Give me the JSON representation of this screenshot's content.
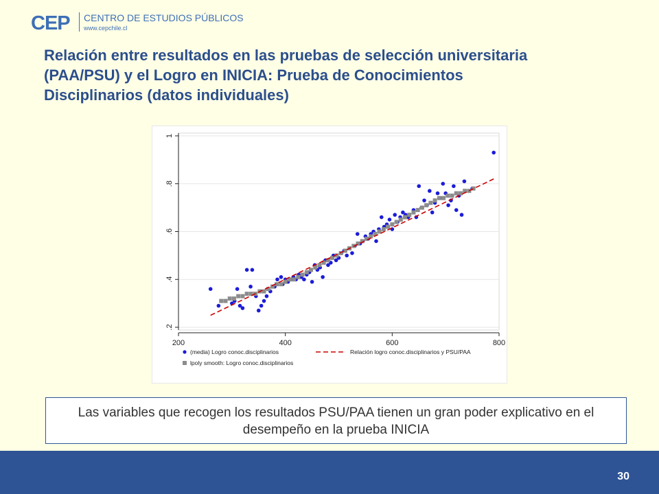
{
  "header": {
    "logo_mark": "CEP",
    "logo_name": "CENTRO DE ESTUDIOS PÚBLICOS",
    "logo_url": "www.cepchile.cl"
  },
  "title": "Relación entre resultados en las pruebas de selección universitaria (PAA/PSU) y el Logro en INICIA: Prueba de Conocimientos Disciplinarios (datos individuales)",
  "note": "Las variables que recogen los resultados PSU/PAA tienen un gran poder explicativo en el desempeño en la prueba INICIA",
  "footer": {
    "page_number": "30"
  },
  "colors": {
    "scatter": "#1c1cd8",
    "smooth": "#8c8c8c",
    "fit": "#cc0000",
    "title": "#2b4e8c",
    "footer": "#2f5496"
  },
  "chart_data": {
    "type": "scatter",
    "xlim": [
      200,
      800
    ],
    "ylim": [
      0.2,
      1.0
    ],
    "xticks": [
      200,
      400,
      600,
      800
    ],
    "xtick_labels": [
      "200",
      "400",
      "600",
      "800"
    ],
    "yticks": [
      0.2,
      0.4,
      0.6,
      0.8,
      1.0
    ],
    "ytick_labels": [
      ".2",
      ".4",
      ".6",
      ".8",
      "1"
    ],
    "grid": true,
    "legend_position": "bottom",
    "series": [
      {
        "name": "(media) Logro conoc.disciplinarios",
        "marker": "circle",
        "points": [
          [
            260,
            0.36
          ],
          [
            275,
            0.29
          ],
          [
            300,
            0.3
          ],
          [
            305,
            0.31
          ],
          [
            310,
            0.36
          ],
          [
            315,
            0.29
          ],
          [
            320,
            0.28
          ],
          [
            328,
            0.44
          ],
          [
            335,
            0.37
          ],
          [
            338,
            0.44
          ],
          [
            345,
            0.33
          ],
          [
            350,
            0.27
          ],
          [
            355,
            0.29
          ],
          [
            360,
            0.31
          ],
          [
            365,
            0.33
          ],
          [
            372,
            0.35
          ],
          [
            380,
            0.37
          ],
          [
            385,
            0.4
          ],
          [
            392,
            0.41
          ],
          [
            395,
            0.38
          ],
          [
            400,
            0.4
          ],
          [
            405,
            0.39
          ],
          [
            410,
            0.4
          ],
          [
            415,
            0.41
          ],
          [
            420,
            0.4
          ],
          [
            425,
            0.42
          ],
          [
            430,
            0.41
          ],
          [
            435,
            0.4
          ],
          [
            440,
            0.42
          ],
          [
            445,
            0.43
          ],
          [
            450,
            0.39
          ],
          [
            455,
            0.46
          ],
          [
            460,
            0.44
          ],
          [
            465,
            0.45
          ],
          [
            470,
            0.41
          ],
          [
            475,
            0.48
          ],
          [
            480,
            0.46
          ],
          [
            485,
            0.47
          ],
          [
            490,
            0.5
          ],
          [
            495,
            0.48
          ],
          [
            500,
            0.49
          ],
          [
            505,
            0.51
          ],
          [
            510,
            0.52
          ],
          [
            515,
            0.5
          ],
          [
            520,
            0.53
          ],
          [
            525,
            0.51
          ],
          [
            530,
            0.54
          ],
          [
            535,
            0.59
          ],
          [
            540,
            0.55
          ],
          [
            545,
            0.56
          ],
          [
            550,
            0.58
          ],
          [
            555,
            0.57
          ],
          [
            560,
            0.59
          ],
          [
            565,
            0.6
          ],
          [
            570,
            0.56
          ],
          [
            575,
            0.61
          ],
          [
            580,
            0.66
          ],
          [
            585,
            0.62
          ],
          [
            590,
            0.63
          ],
          [
            595,
            0.65
          ],
          [
            600,
            0.61
          ],
          [
            605,
            0.67
          ],
          [
            610,
            0.64
          ],
          [
            615,
            0.66
          ],
          [
            620,
            0.68
          ],
          [
            625,
            0.67
          ],
          [
            630,
            0.66
          ],
          [
            640,
            0.69
          ],
          [
            645,
            0.66
          ],
          [
            650,
            0.79
          ],
          [
            655,
            0.7
          ],
          [
            660,
            0.73
          ],
          [
            665,
            0.71
          ],
          [
            670,
            0.77
          ],
          [
            675,
            0.68
          ],
          [
            680,
            0.72
          ],
          [
            685,
            0.76
          ],
          [
            690,
            0.74
          ],
          [
            695,
            0.8
          ],
          [
            700,
            0.76
          ],
          [
            705,
            0.71
          ],
          [
            710,
            0.73
          ],
          [
            715,
            0.79
          ],
          [
            720,
            0.69
          ],
          [
            725,
            0.75
          ],
          [
            730,
            0.67
          ],
          [
            735,
            0.81
          ],
          [
            750,
            0.78
          ],
          [
            790,
            0.93
          ]
        ]
      },
      {
        "name": "lpoly smooth: Logro conoc.disciplinarios",
        "marker": "square",
        "points": [
          [
            280,
            0.31
          ],
          [
            288,
            0.31
          ],
          [
            296,
            0.32
          ],
          [
            304,
            0.32
          ],
          [
            312,
            0.33
          ],
          [
            320,
            0.33
          ],
          [
            328,
            0.34
          ],
          [
            336,
            0.34
          ],
          [
            344,
            0.34
          ],
          [
            352,
            0.35
          ],
          [
            360,
            0.35
          ],
          [
            368,
            0.36
          ],
          [
            376,
            0.37
          ],
          [
            384,
            0.38
          ],
          [
            392,
            0.38
          ],
          [
            400,
            0.39
          ],
          [
            408,
            0.4
          ],
          [
            416,
            0.4
          ],
          [
            424,
            0.41
          ],
          [
            432,
            0.42
          ],
          [
            440,
            0.43
          ],
          [
            448,
            0.44
          ],
          [
            456,
            0.45
          ],
          [
            464,
            0.46
          ],
          [
            472,
            0.47
          ],
          [
            480,
            0.48
          ],
          [
            488,
            0.49
          ],
          [
            496,
            0.5
          ],
          [
            504,
            0.51
          ],
          [
            512,
            0.52
          ],
          [
            520,
            0.53
          ],
          [
            528,
            0.54
          ],
          [
            536,
            0.55
          ],
          [
            544,
            0.56
          ],
          [
            552,
            0.57
          ],
          [
            560,
            0.58
          ],
          [
            568,
            0.59
          ],
          [
            576,
            0.6
          ],
          [
            584,
            0.61
          ],
          [
            592,
            0.62
          ],
          [
            600,
            0.63
          ],
          [
            608,
            0.64
          ],
          [
            616,
            0.65
          ],
          [
            624,
            0.66
          ],
          [
            632,
            0.67
          ],
          [
            640,
            0.68
          ],
          [
            648,
            0.69
          ],
          [
            656,
            0.7
          ],
          [
            664,
            0.71
          ],
          [
            672,
            0.72
          ],
          [
            680,
            0.73
          ],
          [
            688,
            0.74
          ],
          [
            696,
            0.74
          ],
          [
            704,
            0.75
          ],
          [
            712,
            0.75
          ],
          [
            720,
            0.76
          ],
          [
            728,
            0.76
          ],
          [
            736,
            0.77
          ],
          [
            744,
            0.77
          ],
          [
            752,
            0.78
          ]
        ]
      },
      {
        "name": "Relación logro conoc.disciplinarios y PSU/PAA",
        "marker": "dashed-line",
        "points": [
          [
            260,
            0.25
          ],
          [
            790,
            0.82
          ]
        ]
      }
    ]
  }
}
